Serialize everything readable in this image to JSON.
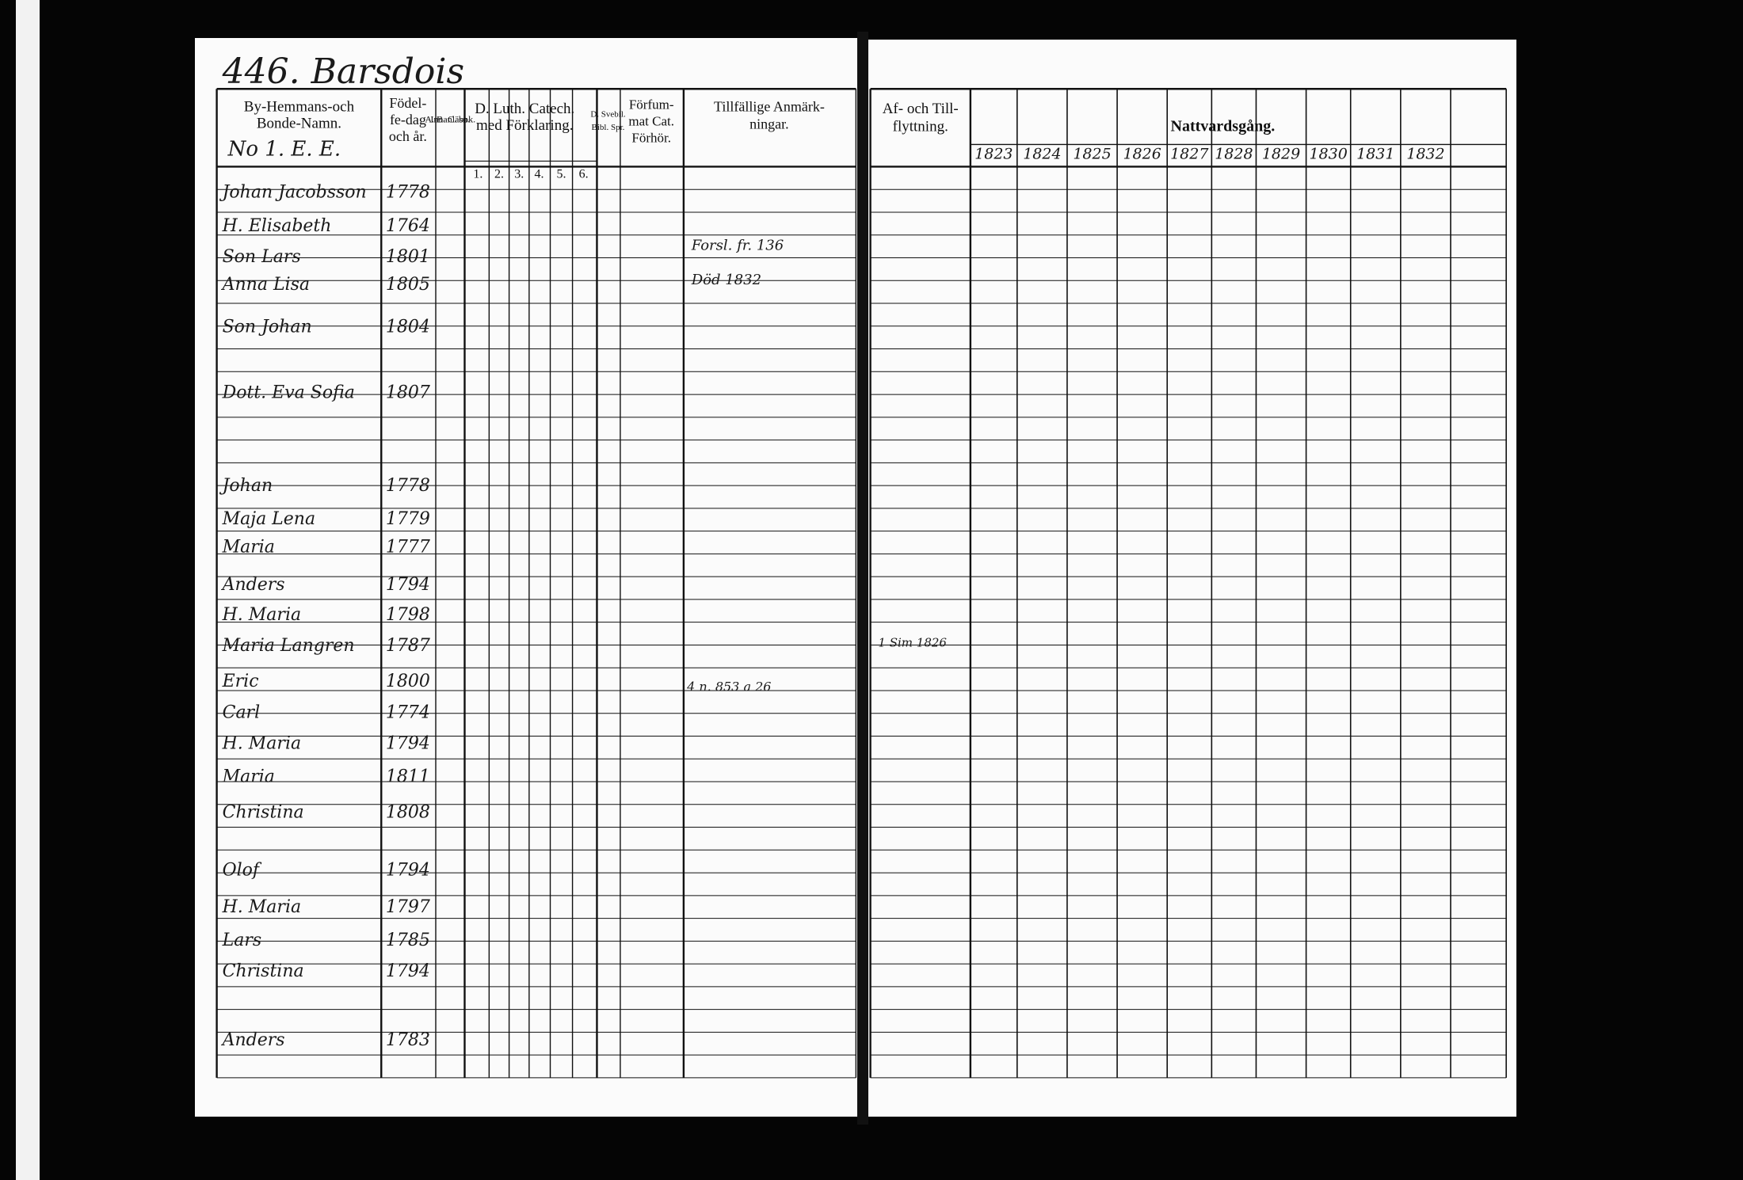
{
  "heading": "446. Barsdois",
  "sub_heading": "No 1. E. E.",
  "header": {
    "name_col": [
      "By-Hemmans-och",
      "Bonde-Namn."
    ],
    "birth_col": [
      "Födel-",
      "fe-dag",
      "och år."
    ],
    "abc_col": [
      "A. B. C. bok.",
      "Innanläsn."
    ],
    "luth_col": [
      "D. Luth. Catech.",
      "med Förklaring."
    ],
    "luth_subcolumns": [
      "1.",
      "2.",
      "3.",
      "4.",
      "5.",
      "6."
    ],
    "bibl_col": [
      "D. Svebil.",
      "Bibl. Spr."
    ],
    "forfumat_col": [
      "Förfum-",
      "mat Cat.",
      "Förhör."
    ],
    "remarks_col": [
      "Tillfällige Anmärk-",
      "ningar."
    ],
    "moving_col": [
      "Af- och Till-",
      "flyttning."
    ],
    "communion_col": "Nattvardsgång."
  },
  "communion_years": [
    "1823",
    "1824",
    "1825",
    "1826",
    "1827",
    "1828",
    "1829",
    "1830",
    "1831",
    "1832"
  ],
  "entries": [
    {
      "name": "Johan Jacobsson",
      "born": "1778"
    },
    {
      "name": "H. Elisabeth",
      "born": "1764"
    },
    {
      "name": "Son Lars",
      "born": "1801"
    },
    {
      "name": "Anna Lisa",
      "born": "1805"
    },
    {
      "name": "Son Johan",
      "born": "1804"
    },
    {
      "name": "Dott. Eva Sofia",
      "born": "1807"
    },
    {
      "name": "Johan",
      "born": "1778"
    },
    {
      "name": "Maja Lena",
      "born": "1779"
    },
    {
      "name": "Maria",
      "born": "1777"
    },
    {
      "name": "Anders",
      "born": "1794"
    },
    {
      "name": "H. Maria",
      "born": "1798"
    },
    {
      "name": "Maria Langren",
      "born": "1787"
    },
    {
      "name": "Eric",
      "born": "1800"
    },
    {
      "name": "Carl",
      "born": "1774"
    },
    {
      "name": "H. Maria",
      "born": "1794"
    },
    {
      "name": "Maria",
      "born": "1811"
    },
    {
      "name": "Christina",
      "born": "1808"
    },
    {
      "name": "Olof",
      "born": "1794"
    },
    {
      "name": "H. Maria",
      "born": "1797"
    },
    {
      "name": "Lars",
      "born": "1785"
    },
    {
      "name": "Christina",
      "born": "1794"
    },
    {
      "name": "Anders",
      "born": "1783"
    }
  ],
  "remarks": [
    "Forsl. fr. 136",
    "Död 1832",
    "4 n. 853 a 26"
  ],
  "moving_note": "1 Sim 1826"
}
